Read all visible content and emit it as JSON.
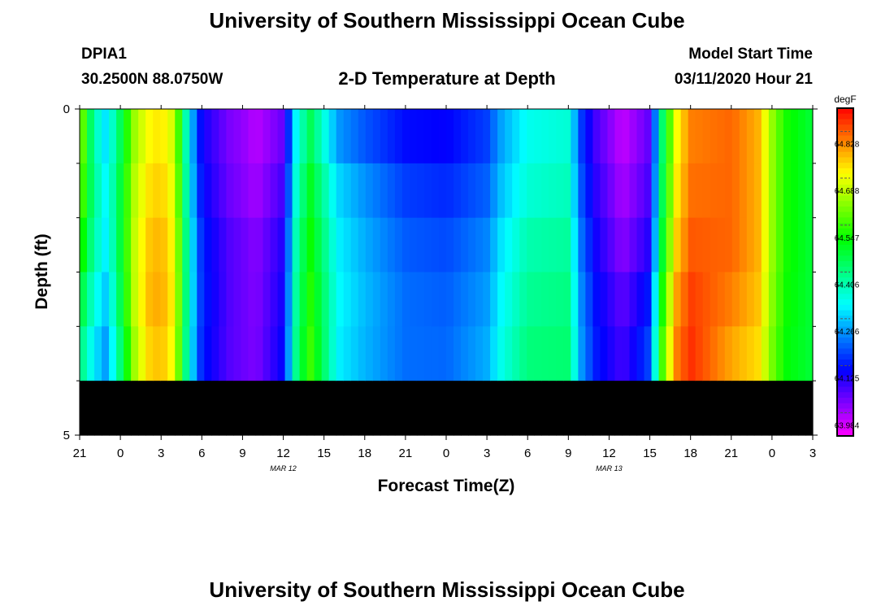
{
  "header": {
    "title": "University of Southern Mississippi Ocean Cube",
    "station": "DPIA1",
    "location": "30.2500N 88.0750W",
    "plot_title": "2-D Temperature at Depth",
    "model_start_label": "Model Start Time",
    "model_start_value": "03/11/2020 Hour 21"
  },
  "footer": {
    "title": "University of Southern Mississippi Ocean Cube"
  },
  "chart_data": {
    "type": "heatmap",
    "title": "2-D Temperature at Depth",
    "xlabel": "Forecast Time(Z)",
    "ylabel": "Depth (ft)",
    "x_ticks": [
      "21",
      "0",
      "3",
      "6",
      "9",
      "12",
      "15",
      "18",
      "21",
      "0",
      "3",
      "6",
      "9",
      "12",
      "15",
      "18",
      "21",
      "0",
      "3"
    ],
    "x_hours": [
      0,
      3,
      6,
      9,
      12,
      15,
      18,
      21,
      24,
      27,
      30,
      33,
      36,
      39,
      42,
      45,
      48,
      51,
      54
    ],
    "date_labels": [
      {
        "label": "MAR 12",
        "hour": 15
      },
      {
        "label": "MAR 13",
        "hour": 39
      }
    ],
    "y_ticks": [
      "0",
      "5"
    ],
    "ylim": [
      0,
      5
    ],
    "depth_rows": [
      0,
      1,
      2,
      3,
      4,
      5
    ],
    "colorbar": {
      "unit": "degF",
      "min": 63.914,
      "max": 64.898,
      "tick_values": [
        64.828,
        64.688,
        64.547,
        64.406,
        64.266,
        64.125,
        63.984
      ],
      "tick_labels": [
        "64.828",
        "64.688",
        "64.547",
        "64.406",
        "64.266",
        "64.125",
        "63.984"
      ]
    },
    "temperature_profile": [
      [
        0,
        64.55
      ],
      [
        1,
        64.38
      ],
      [
        2,
        64.28
      ],
      [
        3,
        64.44
      ],
      [
        4,
        64.62
      ],
      [
        5,
        64.7
      ],
      [
        6,
        64.72
      ],
      [
        7,
        64.65
      ],
      [
        8,
        64.3
      ],
      [
        9,
        64.09
      ],
      [
        11,
        64.0
      ],
      [
        13,
        63.96
      ],
      [
        15,
        64.05
      ],
      [
        16,
        64.35
      ],
      [
        17,
        64.48
      ],
      [
        18,
        64.38
      ],
      [
        19,
        64.28
      ],
      [
        21,
        64.22
      ],
      [
        24,
        64.15
      ],
      [
        27,
        64.13
      ],
      [
        30,
        64.17
      ],
      [
        31,
        64.24
      ],
      [
        33,
        64.32
      ],
      [
        36,
        64.34
      ],
      [
        37,
        64.15
      ],
      [
        38,
        64.06
      ],
      [
        40,
        63.98
      ],
      [
        42,
        64.08
      ],
      [
        43,
        64.5
      ],
      [
        44,
        64.74
      ],
      [
        45,
        64.83
      ],
      [
        48,
        64.82
      ],
      [
        50,
        64.76
      ],
      [
        51,
        64.62
      ],
      [
        52,
        64.52
      ],
      [
        54,
        64.46
      ]
    ],
    "depth_offsets": [
      [
        0,
        0.09,
        0.05,
        0.0,
        -0.07,
        -0.13
      ],
      [
        1,
        0.0,
        0.02,
        0.0,
        -0.04,
        -0.08
      ],
      [
        5,
        0.0,
        0.02,
        0.04,
        0.05,
        0.03
      ],
      [
        12,
        0.02,
        0.03,
        0.05,
        0.05,
        0.05
      ],
      [
        17,
        -0.04,
        0.0,
        0.03,
        0.05,
        0.07
      ],
      [
        19,
        -0.05,
        0.0,
        0.02,
        0.03,
        0.02
      ],
      [
        33,
        0.0,
        0.02,
        0.05,
        0.07,
        0.09
      ],
      [
        38,
        0.0,
        0.02,
        0.04,
        0.06,
        0.07
      ],
      [
        43,
        -0.05,
        -0.03,
        0.0,
        0.05,
        0.09
      ],
      [
        48,
        0.0,
        0.0,
        0.0,
        -0.02,
        -0.05
      ],
      [
        54,
        0.0,
        0.0,
        0.0,
        0.0,
        0.0
      ]
    ]
  }
}
